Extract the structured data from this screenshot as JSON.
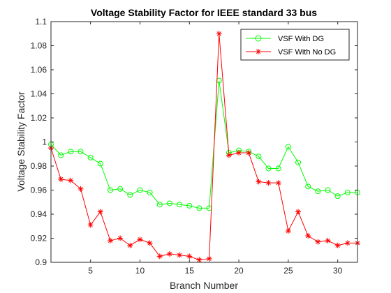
{
  "chart_data": {
    "type": "line",
    "title": "Voltage Stability Factor for IEEE standard 33 bus",
    "xlabel": "Branch Number",
    "ylabel": "Voltage Stability Factor",
    "xlim": [
      1,
      32
    ],
    "ylim": [
      0.9,
      1.1
    ],
    "xticks": [
      5,
      10,
      15,
      20,
      25,
      30
    ],
    "yticks": [
      0.9,
      0.92,
      0.94,
      0.96,
      0.98,
      1.0,
      1.02,
      1.04,
      1.06,
      1.08,
      1.1
    ],
    "xtick_labels": [
      "5",
      "10",
      "15",
      "20",
      "25",
      "30"
    ],
    "ytick_labels": [
      "0.9",
      "0.92",
      "0.94",
      "0.96",
      "0.98",
      "1",
      "1.02",
      "1.04",
      "1.06",
      "1.08",
      "1.1"
    ],
    "grid": false,
    "legend_position": "top-right",
    "x": [
      1,
      2,
      3,
      4,
      5,
      6,
      7,
      8,
      9,
      10,
      11,
      12,
      13,
      14,
      15,
      16,
      17,
      18,
      19,
      20,
      21,
      22,
      23,
      24,
      25,
      26,
      27,
      28,
      29,
      30,
      31,
      32
    ],
    "series": [
      {
        "name": "VSF With DG",
        "color": "#00ff00",
        "marker": "circle",
        "values": [
          0.998,
          0.989,
          0.992,
          0.992,
          0.987,
          0.982,
          0.96,
          0.961,
          0.956,
          0.96,
          0.958,
          0.948,
          0.949,
          0.948,
          0.947,
          0.945,
          0.945,
          1.051,
          0.991,
          0.993,
          0.992,
          0.988,
          0.978,
          0.978,
          0.996,
          0.983,
          0.963,
          0.959,
          0.96,
          0.955,
          0.958,
          0.958
        ]
      },
      {
        "name": "VSF With No DG",
        "color": "#ff0000",
        "marker": "asterisk",
        "values": [
          0.995,
          0.969,
          0.968,
          0.961,
          0.931,
          0.942,
          0.918,
          0.92,
          0.914,
          0.919,
          0.916,
          0.905,
          0.907,
          0.906,
          0.905,
          0.902,
          0.903,
          1.09,
          0.989,
          0.991,
          0.991,
          0.967,
          0.966,
          0.966,
          0.926,
          0.942,
          0.922,
          0.917,
          0.918,
          0.914,
          0.916,
          0.916
        ]
      }
    ]
  }
}
